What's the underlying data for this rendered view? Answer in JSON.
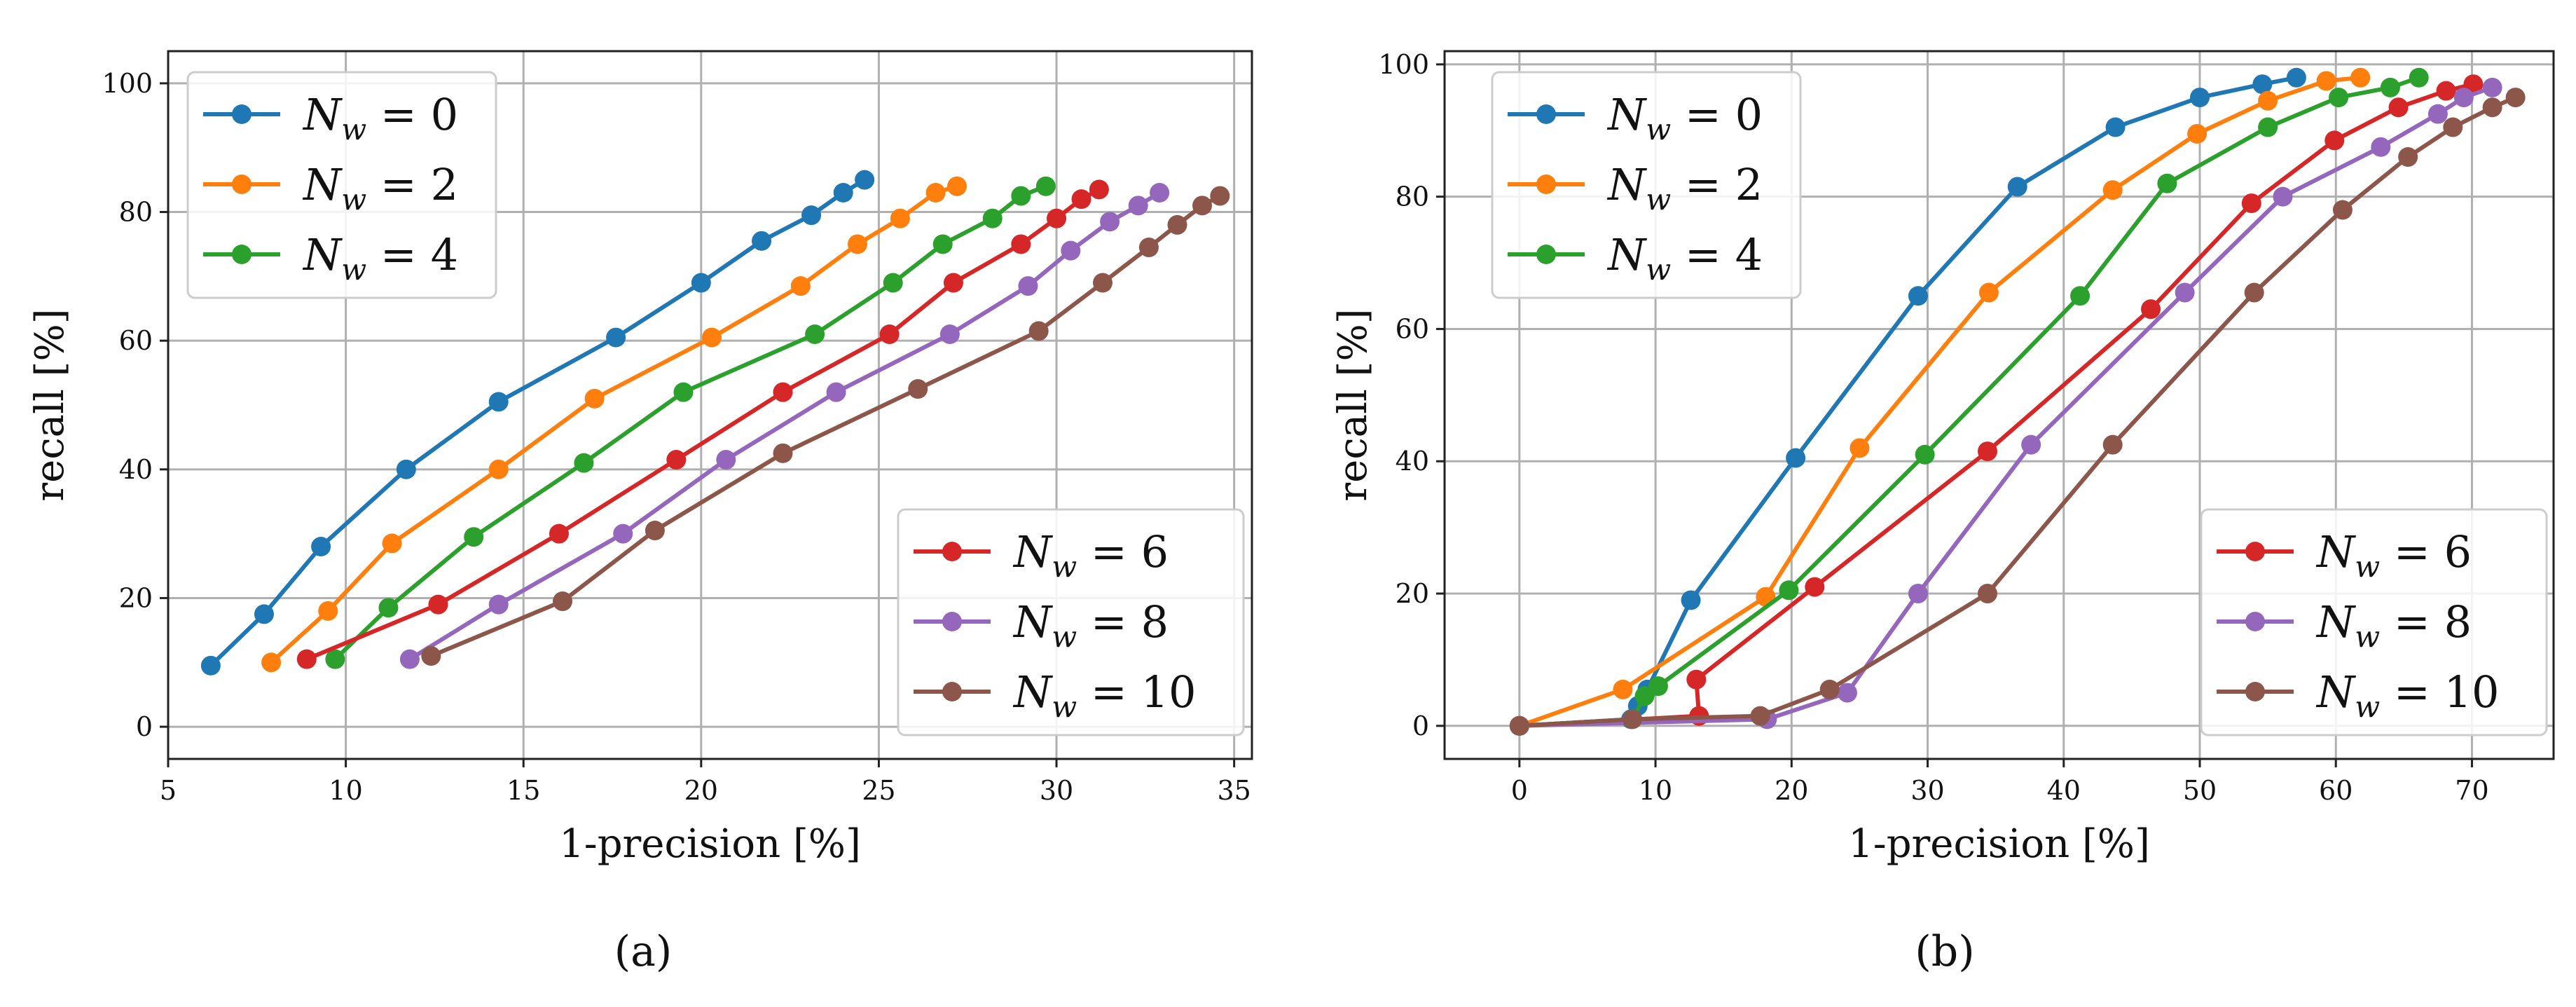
{
  "chart_data": [
    {
      "type": "line",
      "panel_label": "(a)",
      "xlabel": "1-precision [%]",
      "ylabel": "recall [%]",
      "xlim": [
        5,
        35.5
      ],
      "ylim": [
        -5,
        105
      ],
      "xticks": [
        5,
        10,
        15,
        20,
        25,
        30,
        35
      ],
      "yticks": [
        0,
        20,
        40,
        60,
        80,
        100
      ],
      "grid": true,
      "legends": [
        {
          "placement": "upper-left",
          "series": [
            0,
            1,
            2
          ]
        },
        {
          "placement": "lower-right",
          "series": [
            3,
            4,
            5
          ]
        }
      ],
      "series": [
        {
          "name": "N_w = 0",
          "label": "N",
          "sub": "w",
          "eq": "= 0",
          "color": "#1f77b4",
          "x": [
            6.2,
            7.7,
            9.3,
            11.7,
            14.3,
            17.6,
            20.0,
            21.7,
            23.1,
            24.0,
            24.6
          ],
          "y": [
            9.5,
            17.5,
            28,
            40,
            50.5,
            60.5,
            69,
            75.5,
            79.5,
            83,
            85
          ]
        },
        {
          "name": "N_w = 2",
          "label": "N",
          "sub": "w",
          "eq": "= 2",
          "color": "#ff7f0e",
          "x": [
            7.9,
            9.5,
            11.3,
            14.3,
            17.0,
            20.3,
            22.8,
            24.4,
            25.6,
            26.6,
            27.2
          ],
          "y": [
            10,
            18,
            28.5,
            40,
            51,
            60.5,
            68.5,
            75,
            79,
            83,
            84
          ]
        },
        {
          "name": "N_w = 4",
          "label": "N",
          "sub": "w",
          "eq": "= 4",
          "color": "#2ca02c",
          "x": [
            9.7,
            11.2,
            13.6,
            16.7,
            19.5,
            23.2,
            25.4,
            26.8,
            28.2,
            29.0,
            29.7
          ],
          "y": [
            10.5,
            18.5,
            29.5,
            41,
            52,
            61,
            69,
            75,
            79,
            82.5,
            84
          ]
        },
        {
          "name": "N_w = 6",
          "label": "N",
          "sub": "w",
          "eq": "= 6",
          "color": "#d62728",
          "x": [
            8.9,
            12.6,
            16.0,
            19.3,
            22.3,
            25.3,
            27.1,
            29.0,
            30.0,
            30.7,
            31.2
          ],
          "y": [
            10.5,
            19,
            30,
            41.5,
            52,
            61,
            69,
            75,
            79,
            82,
            83.5
          ]
        },
        {
          "name": "N_w = 8",
          "label": "N",
          "sub": "w",
          "eq": "= 8",
          "color": "#9467bd",
          "x": [
            11.8,
            14.3,
            17.8,
            20.7,
            23.8,
            27.0,
            29.2,
            30.4,
            31.5,
            32.3,
            32.9
          ],
          "y": [
            10.5,
            19,
            30,
            41.5,
            52,
            61,
            68.5,
            74,
            78.5,
            81,
            83
          ]
        },
        {
          "name": "N_w = 10",
          "label": "N",
          "sub": "w",
          "eq": "= 10",
          "color": "#8c564b",
          "x": [
            12.4,
            16.1,
            18.7,
            22.3,
            26.1,
            29.5,
            31.3,
            32.6,
            33.4,
            34.1,
            34.6
          ],
          "y": [
            11,
            19.5,
            30.5,
            42.5,
            52.5,
            61.5,
            69,
            74.5,
            78,
            81,
            82.5
          ]
        }
      ]
    },
    {
      "type": "line",
      "panel_label": "(b)",
      "xlabel": "1-precision [%]",
      "ylabel": "recall [%]",
      "xlim": [
        -5.5,
        76
      ],
      "ylim": [
        -5,
        102
      ],
      "xticks": [
        0,
        10,
        20,
        30,
        40,
        50,
        60,
        70
      ],
      "yticks": [
        0,
        20,
        40,
        60,
        80,
        100
      ],
      "grid": true,
      "legends": [
        {
          "placement": "upper-left",
          "series": [
            0,
            1,
            2
          ]
        },
        {
          "placement": "lower-right",
          "series": [
            3,
            4,
            5
          ]
        }
      ],
      "series": [
        {
          "name": "N_w = 0",
          "label": "N",
          "sub": "w",
          "eq": "= 0",
          "color": "#1f77b4",
          "x": [
            0,
            8.2,
            8.7,
            9.4,
            12.6,
            20.3,
            29.3,
            36.6,
            43.8,
            50.0,
            54.6,
            57.1
          ],
          "y": [
            0,
            1,
            3,
            5.5,
            19,
            40.5,
            65,
            81.5,
            90.5,
            95,
            97,
            98
          ]
        },
        {
          "name": "N_w = 2",
          "label": "N",
          "sub": "w",
          "eq": "= 2",
          "color": "#ff7f0e",
          "x": [
            0,
            7.6,
            18.1,
            25.0,
            34.5,
            43.6,
            49.8,
            55.0,
            59.3,
            61.8
          ],
          "y": [
            0,
            5.5,
            19.5,
            42,
            65.5,
            81,
            89.5,
            94.5,
            97.5,
            98
          ]
        },
        {
          "name": "N_w = 4",
          "label": "N",
          "sub": "w",
          "eq": "= 4",
          "color": "#2ca02c",
          "x": [
            0,
            8.3,
            9.2,
            10.2,
            19.8,
            29.8,
            41.2,
            47.6,
            55.0,
            60.2,
            64.0,
            66.1
          ],
          "y": [
            0,
            1,
            4.5,
            6,
            20.5,
            41,
            65,
            82,
            90.5,
            95,
            96.5,
            98
          ]
        },
        {
          "name": "N_w = 6",
          "label": "N",
          "sub": "w",
          "eq": "= 6",
          "color": "#d62728",
          "x": [
            0,
            13.2,
            13.0,
            21.7,
            34.4,
            46.4,
            53.8,
            59.9,
            64.6,
            68.1,
            70.1
          ],
          "y": [
            0,
            1.5,
            7,
            21,
            41.5,
            63,
            79,
            88.5,
            93.5,
            96,
            97
          ]
        },
        {
          "name": "N_w = 8",
          "label": "N",
          "sub": "w",
          "eq": "= 8",
          "color": "#9467bd",
          "x": [
            0,
            18.2,
            24.1,
            29.3,
            37.6,
            48.9,
            56.1,
            63.3,
            67.5,
            69.4,
            71.5
          ],
          "y": [
            0,
            1,
            5,
            20,
            42.5,
            65.5,
            80,
            87.5,
            92.5,
            95,
            96.5
          ]
        },
        {
          "name": "N_w = 10",
          "label": "N",
          "sub": "w",
          "eq": "= 10",
          "color": "#8c564b",
          "x": [
            0,
            8.3,
            17.7,
            22.8,
            34.4,
            43.6,
            54.0,
            60.5,
            65.3,
            68.6,
            71.5,
            73.2
          ],
          "y": [
            0,
            1,
            1.5,
            5.5,
            20,
            42.5,
            65.5,
            78,
            86,
            90.5,
            93.5,
            95
          ]
        }
      ]
    }
  ]
}
